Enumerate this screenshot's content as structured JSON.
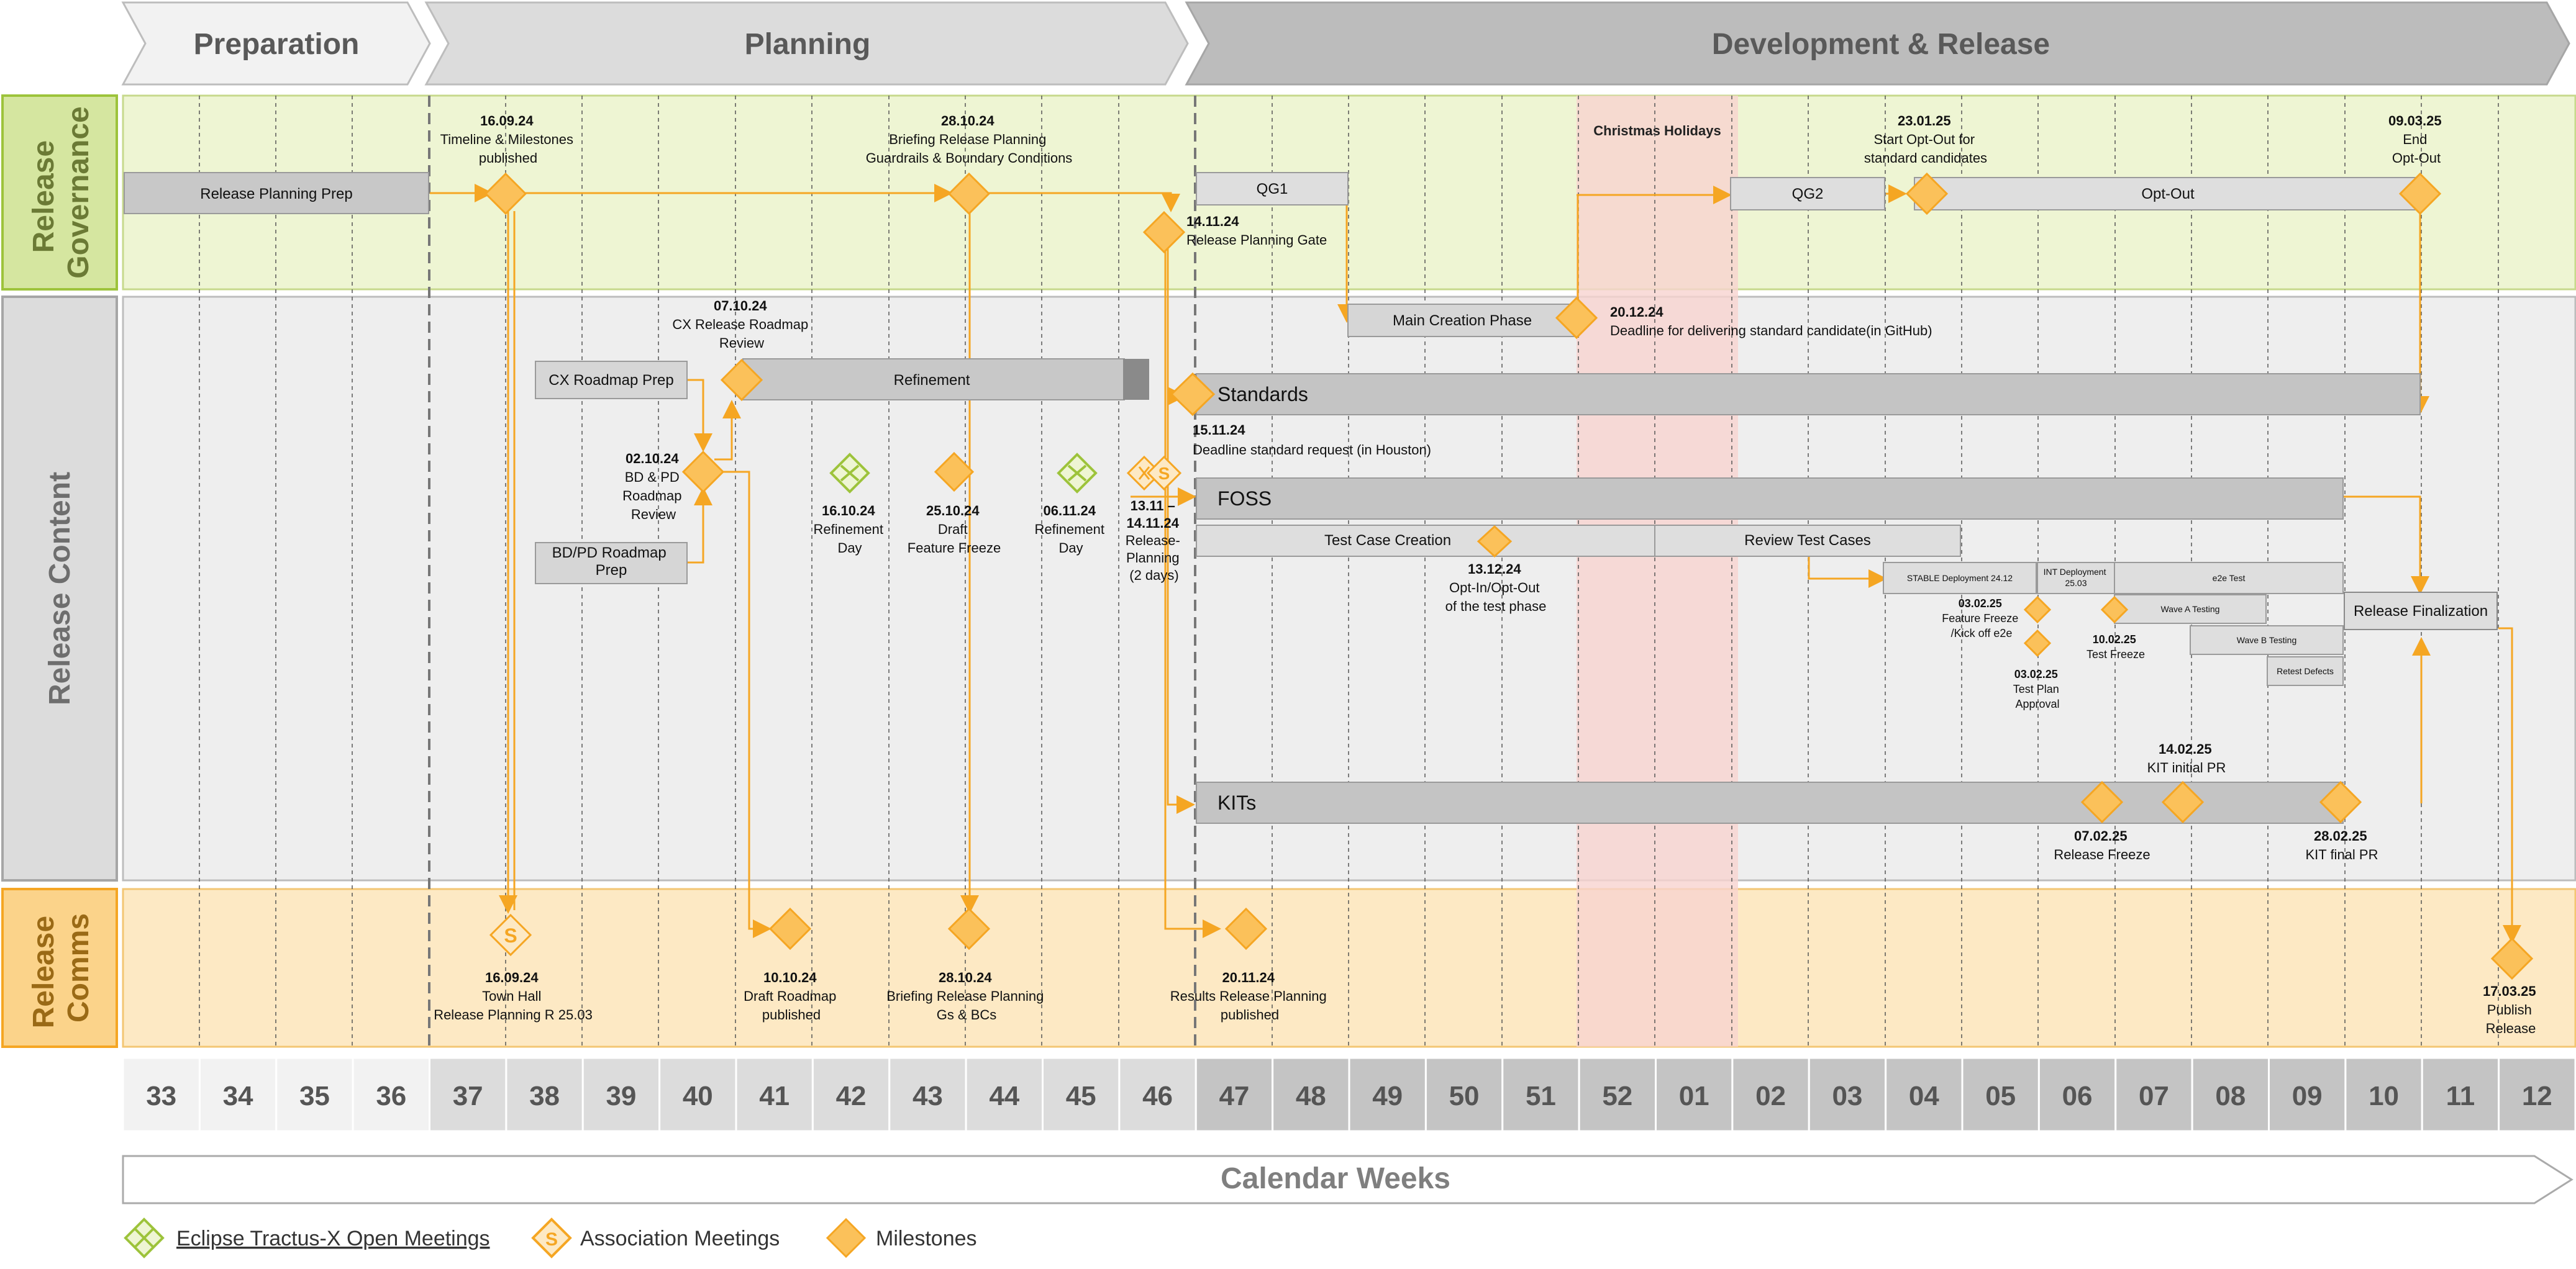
{
  "phases": [
    "Preparation",
    "Planning",
    "Development & Release"
  ],
  "rows": {
    "governance": [
      "Release",
      "Governance"
    ],
    "content": [
      "Release Content"
    ],
    "comms": [
      "Release",
      "Comms"
    ]
  },
  "christmas_label": "Christmas Holidays",
  "bars": {
    "release_planning_prep": "Release Planning Prep",
    "qg1": "QG1",
    "qg2": "QG2",
    "opt_out": "Opt-Out",
    "main_creation": "Main Creation Phase",
    "cx_roadmap_prep": "CX Roadmap Prep",
    "refinement": "Refinement",
    "standards": "Standards",
    "bdpd_roadmap_prep": [
      "BD/PD  Roadmap",
      "Prep"
    ],
    "foss": "FOSS",
    "test_case_creation": "Test Case Creation",
    "review_test_cases": "Review Test Cases",
    "stable_deployment": "STABLE Deployment 24.12",
    "int_deployment": [
      "INT Deployment",
      "25.03"
    ],
    "e2e_test": "e2e Test",
    "wave_a": "Wave A Testing",
    "wave_b": "Wave B Testing",
    "retest": "Retest Defects",
    "release_finalization": "Release Finalization",
    "kits": "KITs"
  },
  "milestones": {
    "m_160924": {
      "date": "16.09.24",
      "lines": [
        "Timeline & Milestones",
        "published"
      ]
    },
    "m_281024": {
      "date": "28.10.24",
      "lines": [
        "Briefing Release Planning",
        "Guardrails & Boundary Conditions"
      ]
    },
    "m_141124": {
      "date": "14.11.24",
      "lines": [
        "Release Planning Gate"
      ]
    },
    "m_230125": {
      "date": "23.01.25",
      "lines": [
        "Start Opt-Out for",
        "standard candidates"
      ]
    },
    "m_090325": {
      "date": "09.03.25",
      "lines": [
        "End",
        "Opt-Out"
      ]
    },
    "m_071024": {
      "date": "07.10.24",
      "lines": [
        "CX Release Roadmap",
        "Review"
      ]
    },
    "m_201224": {
      "date": "20.12.24",
      "lines": [
        "Deadline for delivering standard candidate(in GitHub)"
      ]
    },
    "m_021024": {
      "date": "02.10.24",
      "lines": [
        "BD & PD",
        "Roadmap",
        "Review"
      ]
    },
    "m_161024": {
      "date": "16.10.24",
      "lines": [
        "Refinement",
        "Day"
      ]
    },
    "m_251024": {
      "date": "25.10.24",
      "lines": [
        "Draft",
        "Feature Freeze"
      ]
    },
    "m_061124": {
      "date": "06.11.24",
      "lines": [
        "Refinement",
        "Day"
      ]
    },
    "m_131124": {
      "date": "13.11 –",
      "lines": [
        "14.11.24",
        "Release-",
        "Planning",
        "(2 days)"
      ]
    },
    "m_151124": {
      "date": "15.11.24",
      "lines": [
        "Deadline standard request (in  Houston)"
      ]
    },
    "m_131224": {
      "date": "13.12.24",
      "lines": [
        "Opt-In/Opt-Out",
        "of the test phase"
      ]
    },
    "m_030225a": {
      "date": "03.02.25",
      "lines": [
        "Feature Freeze",
        "/Kick off e2e"
      ]
    },
    "m_030225b": {
      "date": "03.02.25",
      "lines": [
        "Test Plan",
        "Approval"
      ]
    },
    "m_100225": {
      "date": "10.02.25",
      "lines": [
        "Test Freeze"
      ]
    },
    "m_140225": {
      "date": "14.02.25",
      "lines": [
        "KIT initial PR"
      ]
    },
    "m_070225": {
      "date": "07.02.25",
      "lines": [
        "Release Freeze"
      ]
    },
    "m_280225": {
      "date": "28.02.25",
      "lines": [
        "KIT final PR"
      ]
    },
    "c_160924": {
      "date": "16.09.24",
      "lines": [
        "Town Hall",
        "Release Planning R 25.03"
      ]
    },
    "c_101024": {
      "date": "10.10.24",
      "lines": [
        "Draft Roadmap",
        "published"
      ]
    },
    "c_281024": {
      "date": "28.10.24",
      "lines": [
        "Briefing Release Planning",
        "Gs & BCs"
      ]
    },
    "c_201124": {
      "date": "20.11.24",
      "lines": [
        "Results Release Planning",
        "published"
      ]
    },
    "c_170325": {
      "date": "17.03.25",
      "lines": [
        "Publish",
        "Release"
      ]
    }
  },
  "weeks": [
    "33",
    "34",
    "35",
    "36",
    "37",
    "38",
    "39",
    "40",
    "41",
    "42",
    "43",
    "44",
    "45",
    "46",
    "47",
    "48",
    "49",
    "50",
    "51",
    "52",
    "01",
    "02",
    "03",
    "04",
    "05",
    "06",
    "07",
    "08",
    "09",
    "10",
    "11",
    "12"
  ],
  "calendar_label": "Calendar Weeks",
  "legend": {
    "eclipse": "Eclipse Tractus-X Open Meetings",
    "association": "Association Meetings",
    "milestones": "Milestones"
  },
  "colors": {
    "orange": "#f5a623",
    "orange_fill": "#fbc15a",
    "green": "#9dc33b",
    "governance_bg": "#eef5d3",
    "content_bg": "#eeeeee",
    "comms_bg": "#fde9c4",
    "christmas": "#f8d3cf",
    "bar": "#c8c8c8"
  }
}
